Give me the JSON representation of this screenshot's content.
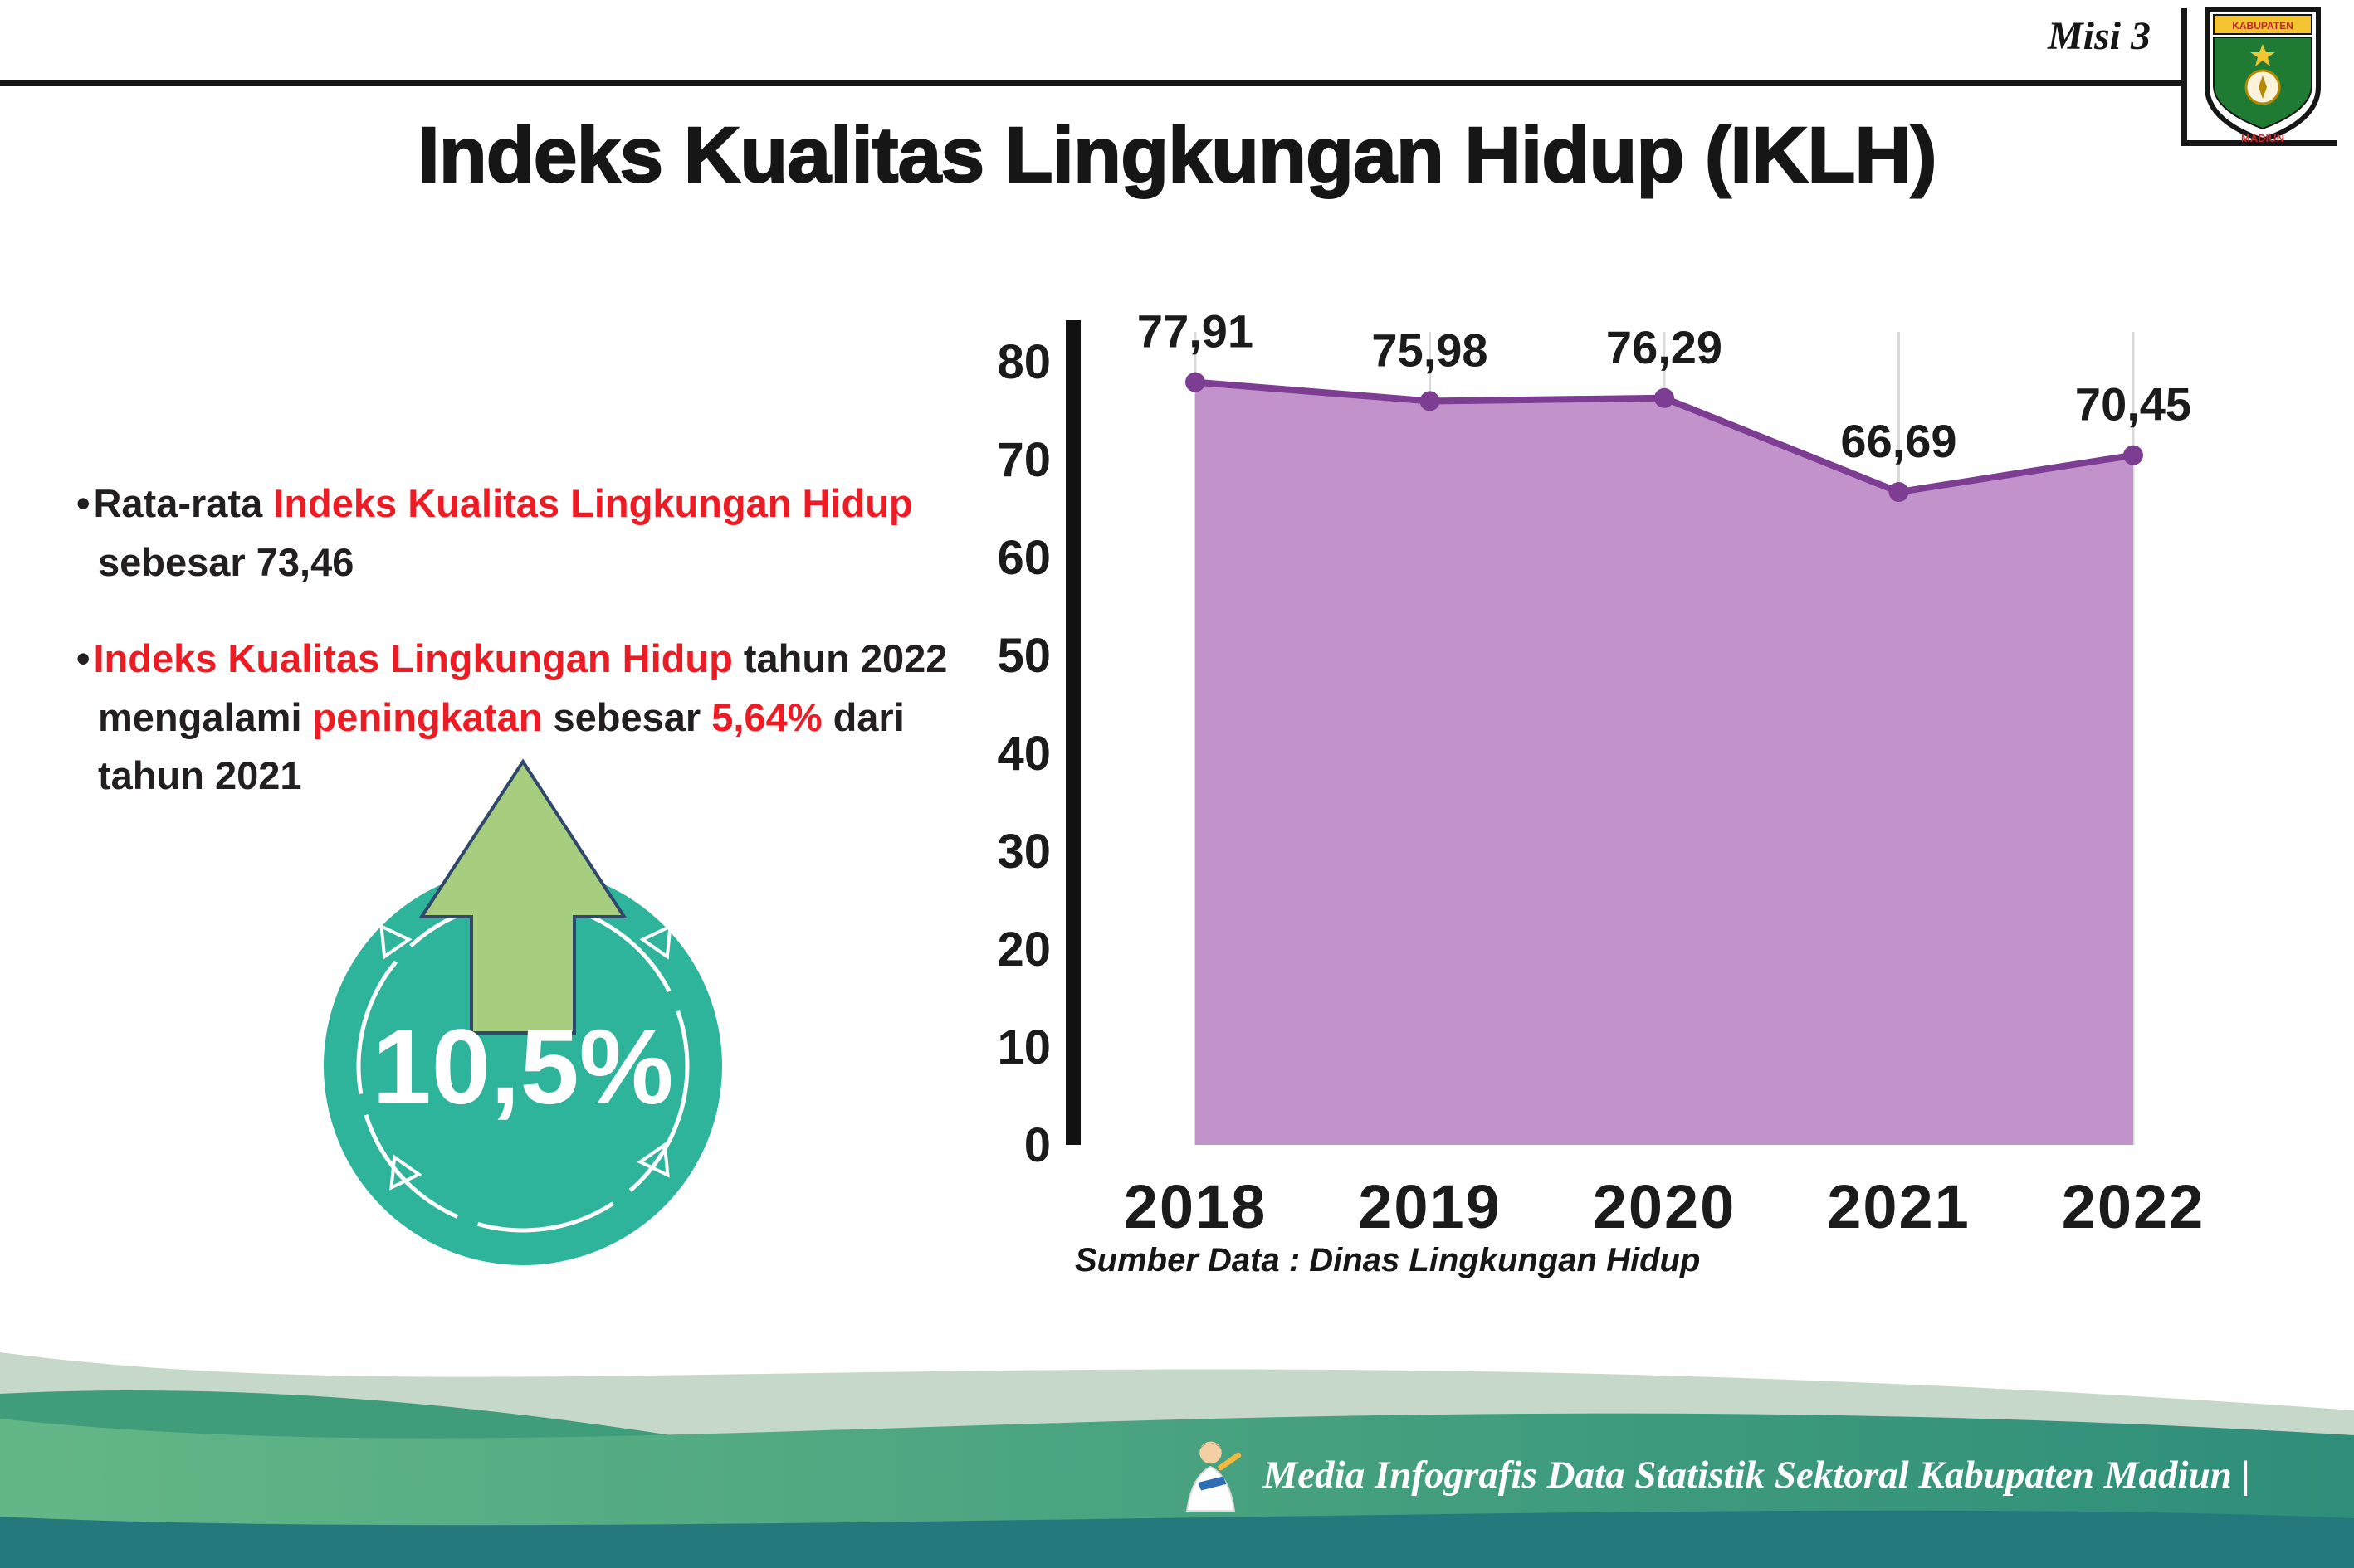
{
  "page": {
    "misi_label": "Misi 3",
    "title": "Indeks Kualitas Lingkungan Hidup (IKLH)"
  },
  "colors": {
    "red": "#ed1c24",
    "dark": "#231f20",
    "teal": "#2eb49b",
    "arrow_green": "#a6ce7e",
    "area_fill": "#c292cb",
    "area_line": "#7c3d93",
    "footer_green_light": "#63b787",
    "footer_green_dark": "#2e8e79",
    "footer_strip": "#25797c"
  },
  "bullets": [
    {
      "lines": [
        [
          {
            "t": "Rata-rata ",
            "c": "dark"
          },
          {
            "t": "Indeks Kualitas Lingkungan Hidup",
            "c": "red"
          }
        ],
        [
          {
            "t": "sebesar 73,46",
            "c": "dark"
          }
        ]
      ]
    },
    {
      "lines": [
        [
          {
            "t": "Indeks Kualitas Lingkungan Hidup",
            "c": "red"
          },
          {
            "t": " tahun 2022",
            "c": "dark"
          }
        ],
        [
          {
            "t": "mengalami ",
            "c": "dark"
          },
          {
            "t": "peningkatan",
            "c": "red"
          },
          {
            "t": " sebesar ",
            "c": "dark"
          },
          {
            "t": "5,64%",
            "c": "red"
          },
          {
            "t": " dari",
            "c": "dark"
          }
        ],
        [
          {
            "t": "tahun 2021",
            "c": "dark"
          }
        ]
      ]
    }
  ],
  "badge": {
    "value": "10,5%"
  },
  "chart_data": {
    "type": "area",
    "title": "Indeks Kualitas Lingkungan Hidup (IKLH)",
    "categories": [
      "2018",
      "2019",
      "2020",
      "2021",
      "2022"
    ],
    "values": [
      77.91,
      75.98,
      76.29,
      66.69,
      70.45
    ],
    "point_labels": [
      "77,91",
      "75,98",
      "76,29",
      "66,69",
      "70,45"
    ],
    "xlabel": "",
    "ylabel": "",
    "ylim": [
      0,
      80
    ],
    "yticks": [
      0,
      10,
      20,
      30,
      40,
      50,
      60,
      70,
      80
    ],
    "grid": "vertical-light",
    "legend": "none",
    "source_note": "Sumber Data : Dinas Lingkungan Hidup"
  },
  "footer": {
    "credit": "Media Infografis Data Statistik Sektoral Kabupaten Madiun |"
  },
  "logo": {
    "banner": "KABUPATEN",
    "bottom": "MADIUN"
  }
}
